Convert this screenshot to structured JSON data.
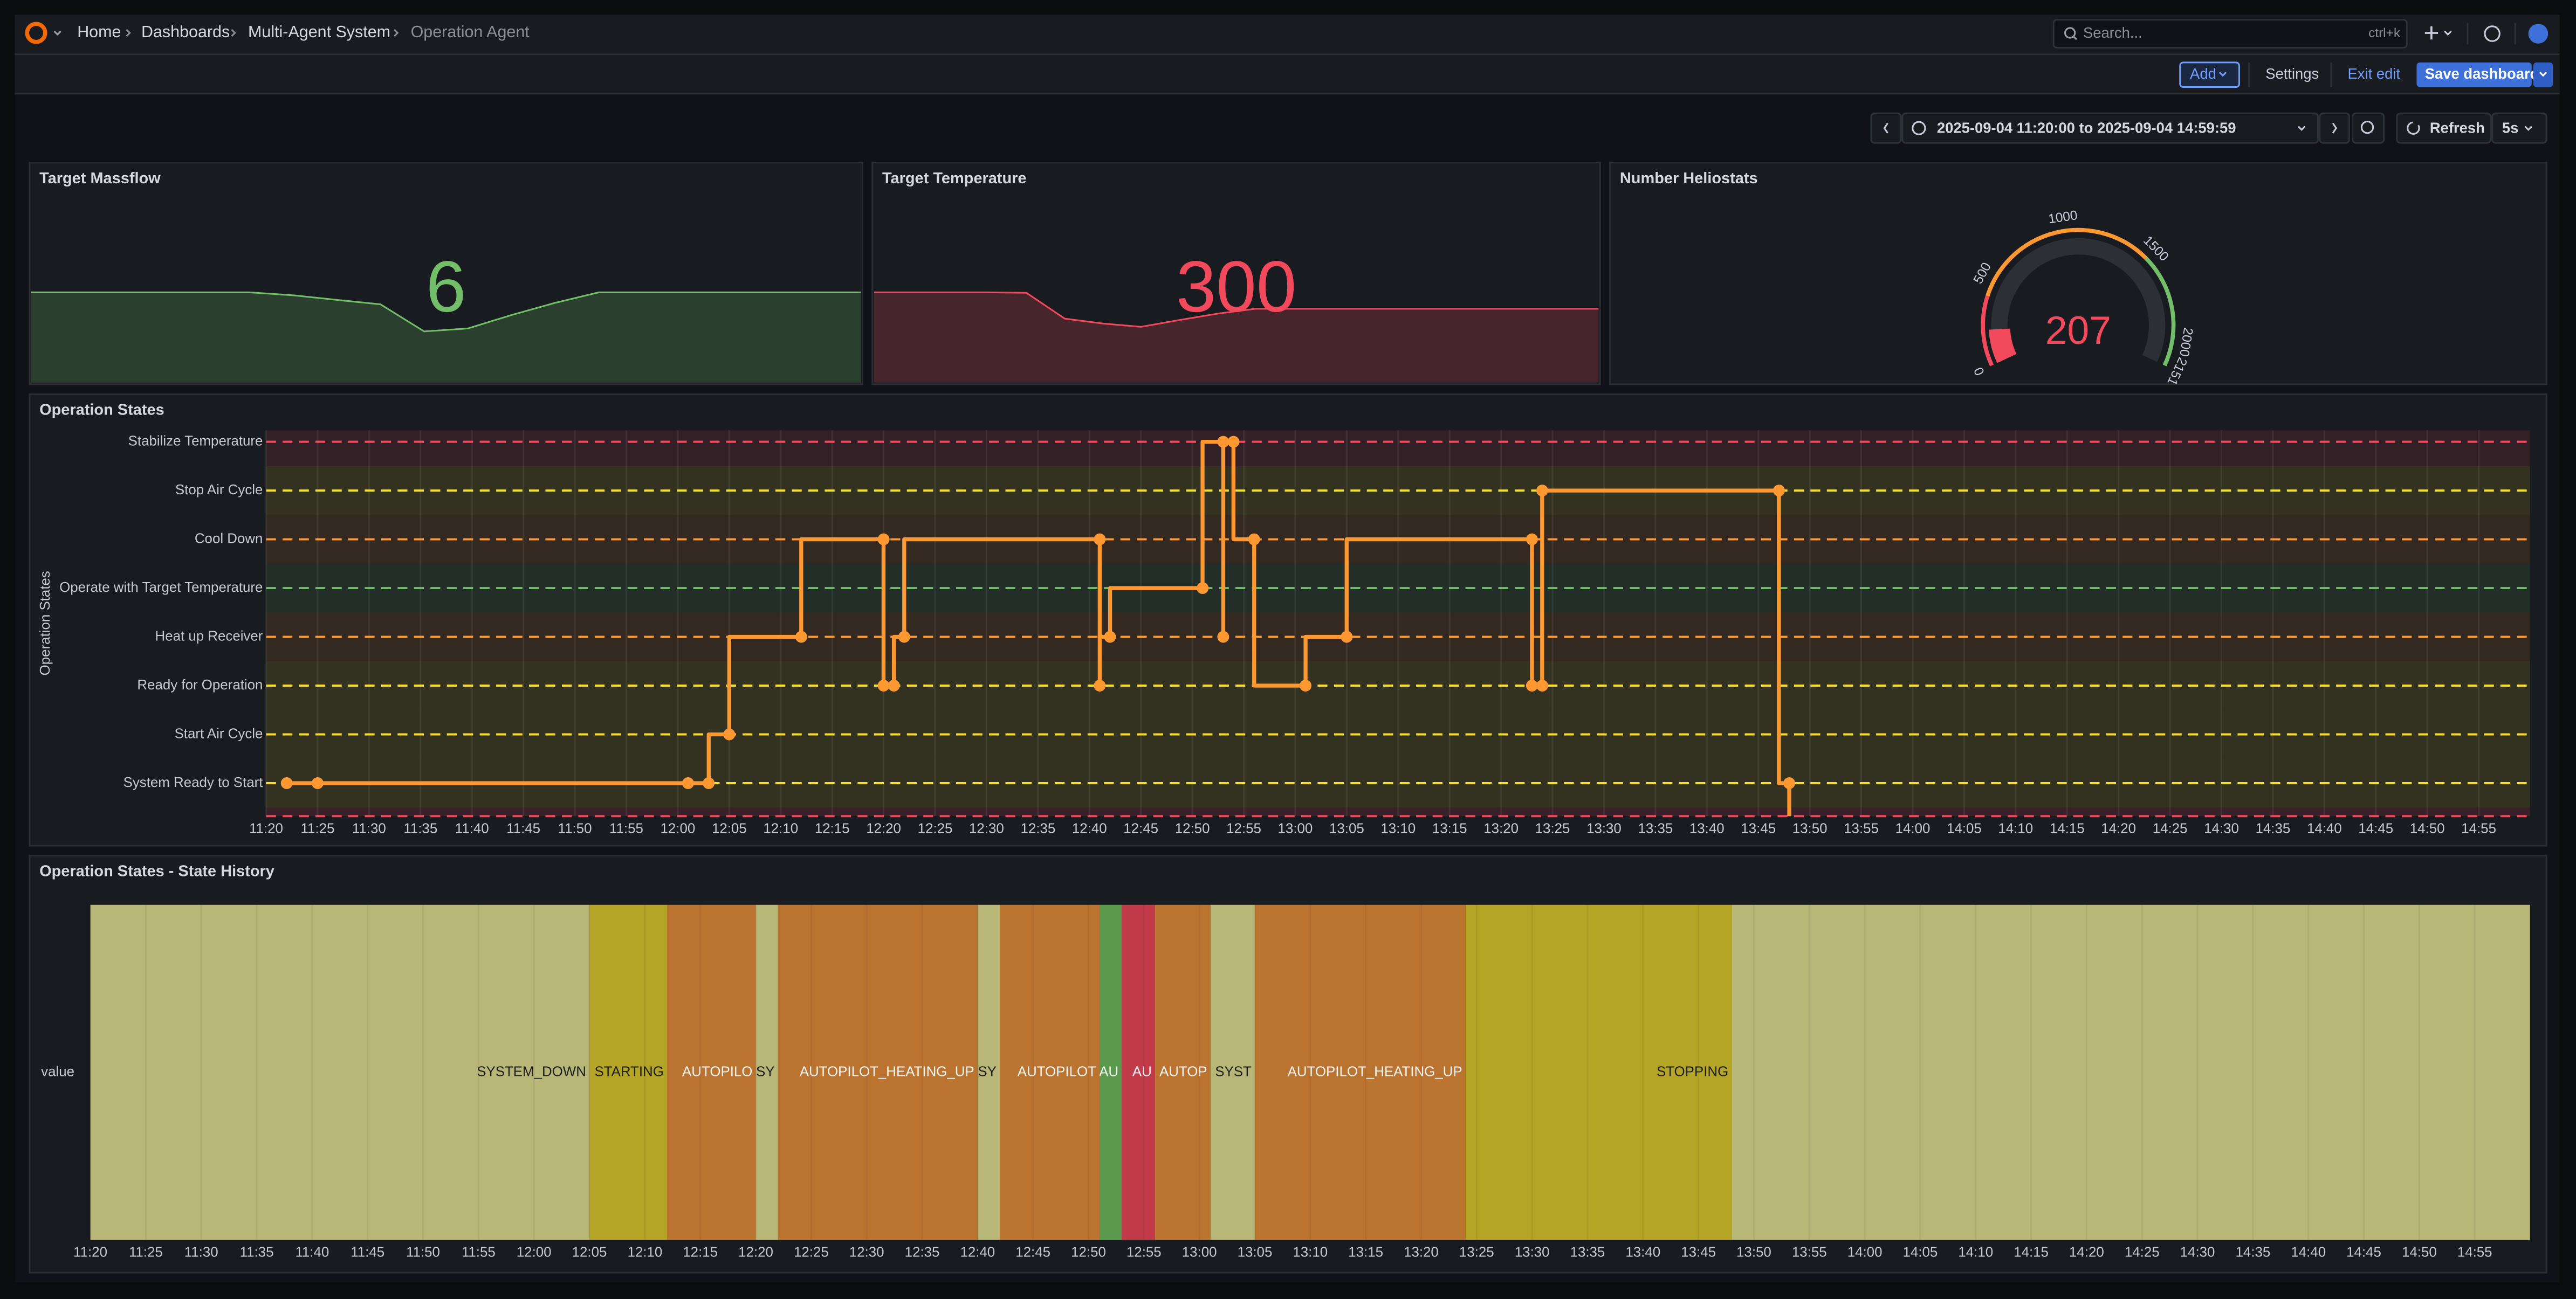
{
  "nav": {
    "breadcrumbs": [
      "Home",
      "Dashboards",
      "Multi-Agent System",
      "Operation Agent"
    ],
    "search_placeholder": "Search...",
    "search_shortcut": "ctrl+k"
  },
  "toolbar": {
    "add": "Add",
    "settings": "Settings",
    "exit_edit": "Exit edit",
    "save": "Save dashboard"
  },
  "time_picker": {
    "range": "2025-09-04 11:20:00 to 2025-09-04 14:59:59",
    "refresh": "Refresh",
    "interval": "5s"
  },
  "panels": [
    {
      "type": "stat",
      "title": "Target Massflow",
      "value": 6,
      "color": "#73bf69",
      "sparkline": [
        6,
        6,
        6,
        6,
        6,
        6,
        5.8,
        5.5,
        5.2,
        3.4,
        3.6,
        4.5,
        5.3,
        6,
        6,
        6,
        6,
        6,
        6,
        6
      ]
    },
    {
      "type": "stat",
      "title": "Target Temperature",
      "value": 300,
      "color": "#f2495c",
      "sparkline": [
        367,
        367,
        367,
        367,
        365,
        260,
        240,
        227,
        254,
        280,
        300,
        300,
        300,
        300,
        300,
        300,
        300,
        300,
        300,
        300
      ]
    },
    {
      "type": "gauge",
      "title": "Number Heliostats",
      "value": 207,
      "color": "#f2495c",
      "ticks": [
        0,
        500,
        1000,
        1500,
        2000,
        2151
      ],
      "thresholds": [
        {
          "value": 0,
          "color": "#f2495c"
        },
        {
          "value": 400,
          "color": "#ff9830"
        },
        {
          "value": 1500,
          "color": "#73bf69"
        }
      ]
    },
    {
      "type": "line",
      "title": "Operation States",
      "y_label": "Operation States",
      "color": "#ff9830",
      "y_categories": [
        {
          "name": "Stabilize Temperature",
          "color": "#f2495c"
        },
        {
          "name": "Stop Air Cycle",
          "color": "#fade2a"
        },
        {
          "name": "Cool Down",
          "color": "#ff9830"
        },
        {
          "name": "Operate with Target Temperature",
          "color": "#73bf69"
        },
        {
          "name": "Heat up Receiver",
          "color": "#ff9830"
        },
        {
          "name": "Ready for Operation",
          "color": "#fade2a"
        },
        {
          "name": "Start Air Cycle",
          "color": "#fade2a"
        },
        {
          "name": "System Ready to Start",
          "color": "#fade2a"
        }
      ],
      "x": [
        "11:22",
        "11:25",
        "12:01",
        "12:03",
        "12:05",
        "12:12",
        "12:20",
        "12:20",
        "12:21",
        "12:22",
        "12:41",
        "12:41",
        "12:42",
        "12:51",
        "12:53",
        "12:53",
        "12:54",
        "12:56",
        "13:01",
        "13:05",
        "13:23",
        "13:23",
        "13:24",
        "13:24",
        "13:47",
        "13:48",
        "13:48"
      ],
      "values": [
        "System Ready to Start",
        "System Ready to Start",
        "System Ready to Start",
        "System Ready to Start",
        "Start Air Cycle",
        "Heat up Receiver",
        "Cool Down",
        "Ready for Operation",
        "Ready for Operation",
        "Heat up Receiver",
        "Cool Down",
        "Ready for Operation",
        "Heat up Receiver",
        "Operate with Target Temperature",
        "Stabilize Temperature",
        "Heat up Receiver",
        "Stabilize Temperature",
        "Cool Down",
        "Ready for Operation",
        "Heat up Receiver",
        "Cool Down",
        "Ready for Operation",
        "Ready for Operation",
        "Stop Air Cycle",
        "Stop Air Cycle",
        "System Ready to Start",
        "SYSTEM_DOWN"
      ],
      "xticks": [
        "11:20",
        "11:25",
        "11:30",
        "11:35",
        "11:40",
        "11:45",
        "11:50",
        "11:55",
        "12:00",
        "12:05",
        "12:10",
        "12:15",
        "12:20",
        "12:25",
        "12:30",
        "12:35",
        "12:40",
        "12:45",
        "12:50",
        "12:55",
        "13:00",
        "13:05",
        "13:10",
        "13:15",
        "13:20",
        "13:25",
        "13:30",
        "13:35",
        "13:40",
        "13:45",
        "13:50",
        "13:55",
        "14:00",
        "14:05",
        "14:10",
        "14:15",
        "14:20",
        "14:25",
        "14:30",
        "14:35",
        "14:40",
        "14:45",
        "14:50",
        "14:55"
      ]
    },
    {
      "type": "state-timeline",
      "title": "Operation States - State History",
      "row_label": "value",
      "segments": [
        {
          "label": "SYSTEM_DOWN",
          "start": "11:20",
          "end": "12:05",
          "color": "#b9b777"
        },
        {
          "label": "STARTING",
          "start": "12:05",
          "end": "12:12",
          "color": "#b5a526"
        },
        {
          "label": "AUTOPILO",
          "start": "12:12",
          "end": "12:20",
          "color": "#bb7430"
        },
        {
          "label": "SY",
          "start": "12:20",
          "end": "12:22",
          "color": "#b9b777"
        },
        {
          "label": "AUTOPILOT_HEATING_UP",
          "start": "12:22",
          "end": "12:40",
          "color": "#bb7430"
        },
        {
          "label": "SY",
          "start": "12:40",
          "end": "12:42",
          "color": "#b9b777"
        },
        {
          "label": "AUTOPILOT",
          "start": "12:42",
          "end": "12:51",
          "color": "#bb7430"
        },
        {
          "label": "AU",
          "start": "12:51",
          "end": "12:53",
          "color": "#5b9a4c"
        },
        {
          "label": "AU",
          "start": "12:53",
          "end": "12:56",
          "color": "#c23b4b"
        },
        {
          "label": "AUTOP",
          "start": "12:56",
          "end": "13:01",
          "color": "#bb7430"
        },
        {
          "label": "SYST",
          "start": "13:01",
          "end": "13:05",
          "color": "#b9b777"
        },
        {
          "label": "AUTOPILOT_HEATING_UP",
          "start": "13:05",
          "end": "13:24",
          "color": "#bb7430"
        },
        {
          "label": "STOPPING",
          "start": "13:24",
          "end": "13:48",
          "color": "#b5a526"
        },
        {
          "label": null,
          "start": "13:48",
          "end": null,
          "color": "#b9b777"
        }
      ]
    }
  ]
}
